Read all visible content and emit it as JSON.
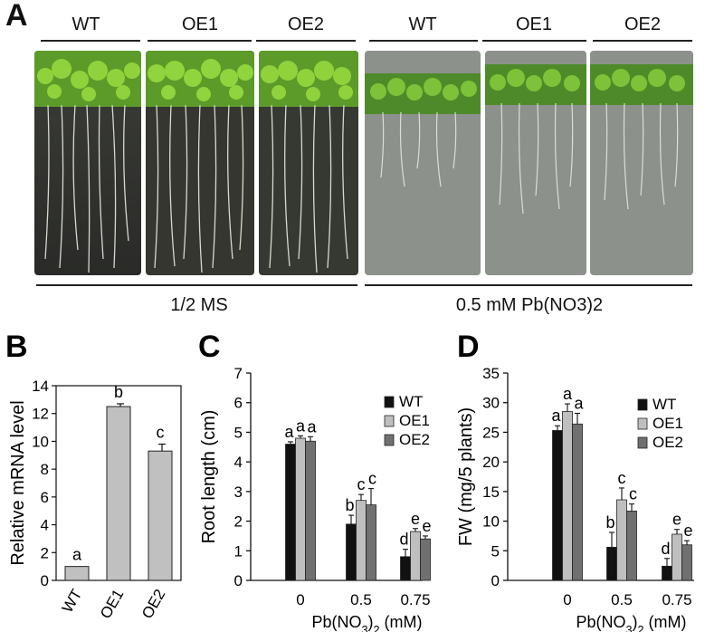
{
  "panelA": {
    "letter": "A",
    "genotypes": [
      "WT",
      "OE1",
      "OE2",
      "WT",
      "OE1",
      "OE2"
    ],
    "conditions": [
      "1/2 MS",
      "0.5 mM Pb(NO3)2"
    ]
  },
  "chart_data": [
    {
      "panel": "B",
      "type": "bar",
      "ylabel": "Relative mRNA level",
      "categories": [
        "WT",
        "OE1",
        "OE2"
      ],
      "values": [
        1,
        12.5,
        9.3
      ],
      "errors": [
        0,
        0.2,
        0.5
      ],
      "letters": [
        "a",
        "b",
        "c"
      ],
      "ylim": [
        0,
        14
      ],
      "yticks": [
        0,
        2,
        4,
        6,
        8,
        10,
        12,
        14
      ],
      "colors": [
        "#c0c0c0"
      ]
    },
    {
      "panel": "C",
      "type": "bar",
      "ylabel": "Root length (cm)",
      "xlabel": "Pb(NO3)2 (mM)",
      "categories": [
        "0",
        "0.5",
        "0.75"
      ],
      "ylim": [
        0,
        7
      ],
      "yticks": [
        0,
        1,
        2,
        3,
        4,
        5,
        6,
        7
      ],
      "legend": "top-right",
      "series": [
        {
          "name": "WT",
          "color": "#111111",
          "values": [
            4.6,
            1.9,
            0.8
          ],
          "errors": [
            0.08,
            0.3,
            0.25
          ],
          "letters": [
            "a",
            "b",
            "d"
          ]
        },
        {
          "name": "OE1",
          "color": "#bfbfbf",
          "values": [
            4.8,
            2.7,
            1.65
          ],
          "errors": [
            0.08,
            0.2,
            0.1
          ],
          "letters": [
            "a",
            "c",
            "e"
          ]
        },
        {
          "name": "OE2",
          "color": "#707070",
          "values": [
            4.7,
            2.55,
            1.4
          ],
          "errors": [
            0.15,
            0.55,
            0.1
          ],
          "letters": [
            "a",
            "c",
            "e"
          ]
        }
      ]
    },
    {
      "panel": "D",
      "type": "bar",
      "ylabel": "FW (mg/5 plants)",
      "xlabel": "Pb(NO3)2 (mM)",
      "categories": [
        "0",
        "0.5",
        "0.75"
      ],
      "ylim": [
        0,
        35
      ],
      "yticks": [
        0,
        5,
        10,
        15,
        20,
        25,
        30,
        35
      ],
      "legend": "top-right",
      "series": [
        {
          "name": "WT",
          "color": "#111111",
          "values": [
            25.3,
            5.6,
            2.4
          ],
          "errors": [
            0.8,
            2.5,
            1.3
          ],
          "letters": [
            "a",
            "b",
            "d"
          ]
        },
        {
          "name": "OE1",
          "color": "#bfbfbf",
          "values": [
            28.5,
            13.6,
            7.8
          ],
          "errors": [
            1.3,
            2.0,
            0.8
          ],
          "letters": [
            "a",
            "c",
            "e"
          ]
        },
        {
          "name": "OE2",
          "color": "#707070",
          "values": [
            26.4,
            11.7,
            6.0
          ],
          "errors": [
            1.8,
            1.2,
            0.7
          ],
          "letters": [
            "a",
            "c",
            "e"
          ]
        }
      ]
    }
  ]
}
